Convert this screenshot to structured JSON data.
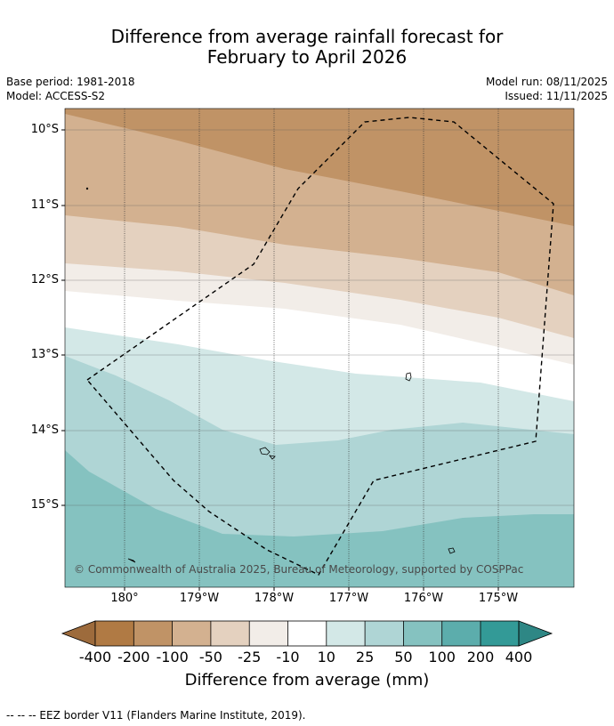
{
  "title_line1": "Difference from average rainfall forecast for",
  "title_line2": "February to April 2026",
  "base_period": "Base period: 1981-2018",
  "model": "Model: ACCESS-S2",
  "model_run": "Model run: 08/11/2025",
  "issued": "Issued: 11/11/2025",
  "lat_labels": [
    "10°S",
    "11°S",
    "12°S",
    "13°S",
    "14°S",
    "15°S"
  ],
  "lon_labels": [
    "180°",
    "179°W",
    "178°W",
    "177°W",
    "176°W",
    "175°W"
  ],
  "copyright": "© Commonwealth of Australia 2025, Bureau of Meteorology, supported by COSPPac",
  "colorbar": {
    "ticks": [
      "-400",
      "-200",
      "-100",
      "-50",
      "-25",
      "-10",
      "10",
      "25",
      "50",
      "100",
      "200",
      "400"
    ],
    "colors": [
      "#b07a44",
      "#c09366",
      "#d3b190",
      "#e4d1bf",
      "#f2ede8",
      "#ffffff",
      "#d3e8e7",
      "#afd5d5",
      "#85c2c0",
      "#5cadac",
      "#339a97"
    ],
    "extend_low_color": "#9d6b3c",
    "extend_high_color": "#2e8785",
    "label": "Difference from average (mm)"
  },
  "footer": "--  --  -- EEZ border V11 (Flanders Marine Institute, 2019)."
}
